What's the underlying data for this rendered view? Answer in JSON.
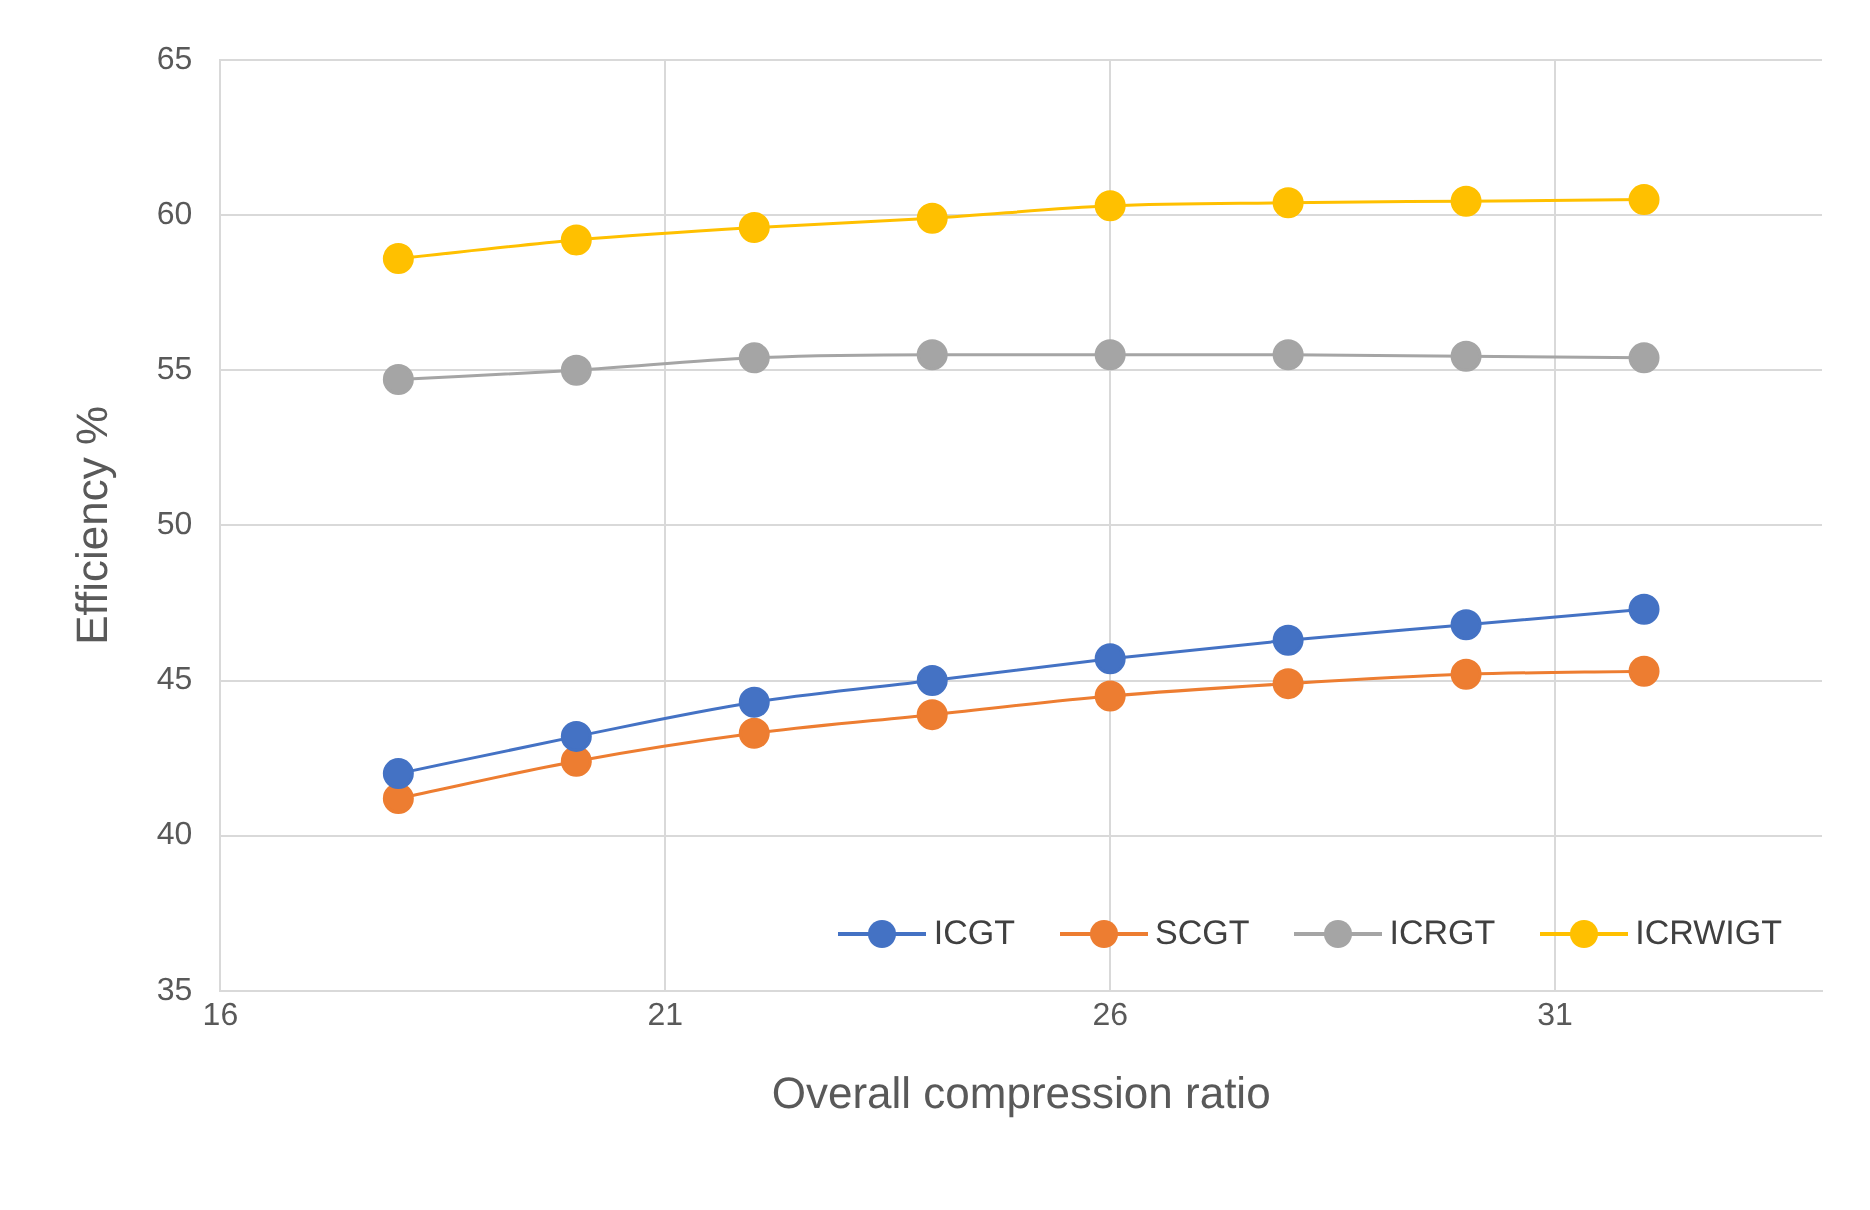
{
  "chart_data": {
    "type": "line",
    "xlabel": "Overall compression ratio",
    "ylabel": "Efficiency %",
    "x": [
      18,
      20,
      22,
      24,
      26,
      28,
      30,
      32
    ],
    "series": [
      {
        "name": "ICGT",
        "color": "#4472c4",
        "values": [
          42.0,
          43.2,
          44.3,
          45.0,
          45.7,
          46.3,
          46.8,
          47.3
        ]
      },
      {
        "name": "SCGT",
        "color": "#ed7d31",
        "values": [
          41.2,
          42.4,
          43.3,
          43.9,
          44.5,
          44.9,
          45.2,
          45.3
        ]
      },
      {
        "name": "ICRGT",
        "color": "#a5a5a5",
        "values": [
          54.7,
          55.0,
          55.4,
          55.5,
          55.5,
          55.5,
          55.45,
          55.4
        ]
      },
      {
        "name": "ICRWIGT",
        "color": "#ffc000",
        "values": [
          58.6,
          59.2,
          59.6,
          59.9,
          60.3,
          60.4,
          60.45,
          60.5
        ]
      }
    ],
    "xlim": [
      16,
      34
    ],
    "xticks": [
      16,
      21,
      26,
      31
    ],
    "ylim": [
      35,
      65
    ],
    "yticks": [
      35,
      40,
      45,
      50,
      55,
      60,
      65
    ],
    "grid": true,
    "legend": "bottom right",
    "marker": "circle",
    "line_style": "solid"
  }
}
